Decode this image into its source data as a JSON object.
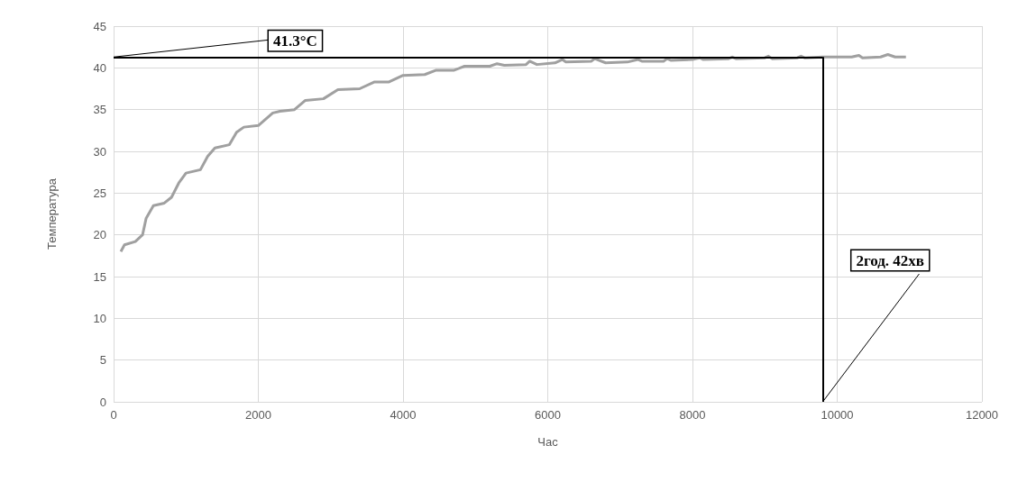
{
  "chart_data": {
    "type": "line",
    "xlabel": "Час",
    "ylabel": "Температура",
    "xlim": [
      0,
      12000
    ],
    "xticks": [
      0,
      2000,
      4000,
      6000,
      8000,
      10000,
      12000
    ],
    "ylim": [
      0,
      45
    ],
    "yticks": [
      0,
      5,
      10,
      15,
      20,
      25,
      30,
      35,
      40,
      45
    ],
    "grid": true,
    "marker": "none",
    "series": [
      {
        "color": "#a0a0a0",
        "x": [
          100,
          150,
          300,
          400,
          450,
          550,
          700,
          800,
          900,
          1000,
          1200,
          1300,
          1400,
          1600,
          1700,
          1800,
          2000,
          2200,
          2300,
          2500,
          2650,
          2900,
          3100,
          3400,
          3600,
          3800,
          4000,
          4300,
          4450,
          4700,
          4850,
          5200,
          5300,
          5400,
          5700,
          5750,
          5850,
          6100,
          6200,
          6250,
          6600,
          6650,
          6800,
          7100,
          7250,
          7300,
          7600,
          7650,
          7700,
          8000,
          8100,
          8150,
          8500,
          8550,
          8600,
          9000,
          9050,
          9100,
          9450,
          9500,
          9550,
          9800,
          10200,
          10300,
          10350,
          10600,
          10700,
          10800,
          10950
        ],
        "values": [
          18,
          18.8,
          19.2,
          20,
          22,
          23.5,
          23.8,
          24.5,
          26.2,
          27.4,
          27.8,
          29.4,
          30.4,
          30.8,
          32.3,
          32.9,
          33.1,
          34.6,
          34.8,
          35,
          36.1,
          36.3,
          37.4,
          37.5,
          38.3,
          38.3,
          39.1,
          39.2,
          39.7,
          39.7,
          40.2,
          40.2,
          40.5,
          40.3,
          40.4,
          40.8,
          40.4,
          40.6,
          41,
          40.7,
          40.8,
          41.1,
          40.6,
          40.7,
          41,
          40.8,
          40.8,
          41.1,
          40.9,
          41,
          41.2,
          41,
          41.1,
          41.3,
          41.1,
          41.2,
          41.4,
          41.1,
          41.2,
          41.4,
          41.2,
          41.3,
          41.3,
          41.5,
          41.2,
          41.3,
          41.6,
          41.3,
          41.3
        ]
      }
    ],
    "ref_lines": [
      {
        "axis": "y",
        "value": 41.3,
        "label": "41.3°C",
        "color": "#000000"
      },
      {
        "axis": "x",
        "value": 9800,
        "label": "2год. 42хв",
        "color": "#000000"
      }
    ]
  }
}
